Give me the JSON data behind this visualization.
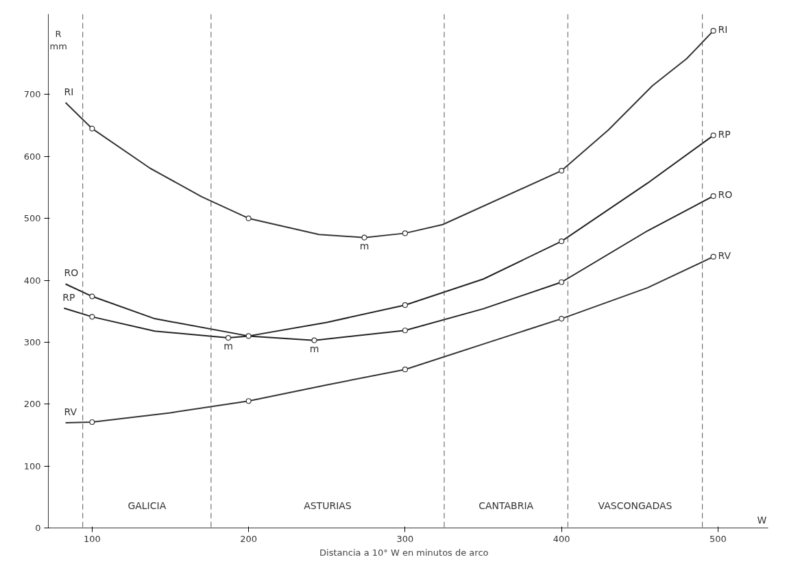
{
  "chart_data": {
    "type": "line",
    "xlabel": "Distancia a  10° W  en  minutos de arco",
    "ylabel": "R\nmm",
    "xlim": [
      72,
      532
    ],
    "ylim": [
      0,
      830
    ],
    "xticks": [
      100,
      200,
      300,
      400,
      500
    ],
    "yticks": [
      0,
      100,
      200,
      300,
      400,
      500,
      600,
      700
    ],
    "grid": false,
    "legend": false,
    "marker": "circle",
    "line_style": "solid",
    "series": [
      {
        "name": "RI",
        "color": "#333333",
        "marker": "none",
        "x": [
          83,
          100,
          137,
          170,
          200,
          245,
          274,
          300,
          324,
          400,
          430,
          458,
          480,
          497
        ],
        "values": [
          687,
          645,
          581,
          535,
          500,
          474,
          469,
          476,
          490,
          577,
          643,
          714,
          758,
          803
        ]
      },
      {
        "name": "RO",
        "color": "#222222",
        "marker": "none",
        "x": [
          83,
          100,
          140,
          200,
          242,
          300,
          350,
          400,
          455,
          497
        ],
        "values": [
          394,
          374,
          338,
          310,
          303,
          319,
          354,
          397,
          480,
          536
        ]
      },
      {
        "name": "RP",
        "color": "#222222",
        "marker": "none",
        "x": [
          82,
          100,
          140,
          187,
          200,
          250,
          300,
          350,
          400,
          455,
          497
        ],
        "values": [
          355,
          341,
          318,
          307,
          310,
          332,
          360,
          402,
          463,
          557,
          634
        ]
      },
      {
        "name": "RV",
        "color": "#333333",
        "marker": "none",
        "x": [
          83,
          100,
          150,
          200,
          250,
          300,
          350,
          400,
          455,
          497
        ],
        "values": [
          170,
          171,
          186,
          205,
          231,
          256,
          297,
          338,
          388,
          438
        ]
      },
      {
        "type": "scatter",
        "color": "#333333",
        "x": [
          100,
          200,
          274,
          300,
          400,
          497,
          100,
          200,
          242,
          300,
          400,
          497,
          100,
          187,
          300,
          400,
          497,
          100,
          200,
          300,
          400,
          497
        ],
        "values": [
          645,
          500,
          469,
          476,
          577,
          803,
          374,
          310,
          303,
          319,
          397,
          536,
          341,
          307,
          360,
          463,
          634,
          171,
          205,
          256,
          338,
          438
        ]
      }
    ],
    "ref_lines": [
      {
        "axis": "x",
        "value": 94,
        "color": "#555555",
        "line_style": "dashed"
      },
      {
        "axis": "x",
        "value": 176,
        "color": "#555555",
        "line_style": "dashed"
      },
      {
        "axis": "x",
        "value": 325,
        "color": "#555555",
        "line_style": "dashed"
      },
      {
        "axis": "x",
        "value": 404,
        "color": "#555555",
        "line_style": "dashed"
      },
      {
        "axis": "x",
        "value": 490,
        "color": "#555555",
        "line_style": "dashed"
      }
    ],
    "annotations": [
      "GALICIA",
      "ASTURIAS",
      "CANTABRIA",
      "VASCONGADAS",
      {
        "text": "m",
        "x": 274,
        "y": 469
      },
      {
        "text": "m",
        "x": 187,
        "y": 307
      },
      {
        "text": "m",
        "x": 242,
        "y": 303
      },
      "W"
    ]
  }
}
